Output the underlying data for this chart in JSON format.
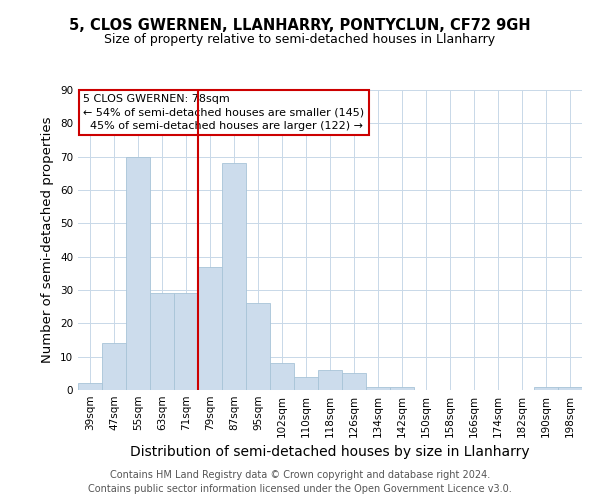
{
  "title": "5, CLOS GWERNEN, LLANHARRY, PONTYCLUN, CF72 9GH",
  "subtitle": "Size of property relative to semi-detached houses in Llanharry",
  "xlabel": "Distribution of semi-detached houses by size in Llanharry",
  "ylabel": "Number of semi-detached properties",
  "categories": [
    "39sqm",
    "47sqm",
    "55sqm",
    "63sqm",
    "71sqm",
    "79sqm",
    "87sqm",
    "95sqm",
    "102sqm",
    "110sqm",
    "118sqm",
    "126sqm",
    "134sqm",
    "142sqm",
    "150sqm",
    "158sqm",
    "166sqm",
    "174sqm",
    "182sqm",
    "190sqm",
    "198sqm"
  ],
  "values": [
    2,
    14,
    70,
    29,
    29,
    37,
    68,
    26,
    8,
    4,
    6,
    5,
    1,
    1,
    0,
    0,
    0,
    0,
    0,
    1,
    1
  ],
  "bar_color": "#ccdcec",
  "bar_edge_color": "#a8c4d8",
  "highlight_line_color": "#cc0000",
  "highlight_line_index": 5,
  "annotation_text": "5 CLOS GWERNEN: 78sqm\n← 54% of semi-detached houses are smaller (145)\n  45% of semi-detached houses are larger (122) →",
  "annotation_box_color": "#ffffff",
  "annotation_box_edge_color": "#cc0000",
  "ylim": [
    0,
    90
  ],
  "yticks": [
    0,
    10,
    20,
    30,
    40,
    50,
    60,
    70,
    80,
    90
  ],
  "footer": "Contains HM Land Registry data © Crown copyright and database right 2024.\nContains public sector information licensed under the Open Government Licence v3.0.",
  "bg_color": "#ffffff",
  "grid_color": "#c8d8e8",
  "title_fontsize": 10.5,
  "subtitle_fontsize": 9,
  "axis_label_fontsize": 9.5,
  "tick_fontsize": 7.5,
  "annotation_fontsize": 8,
  "footer_fontsize": 7
}
